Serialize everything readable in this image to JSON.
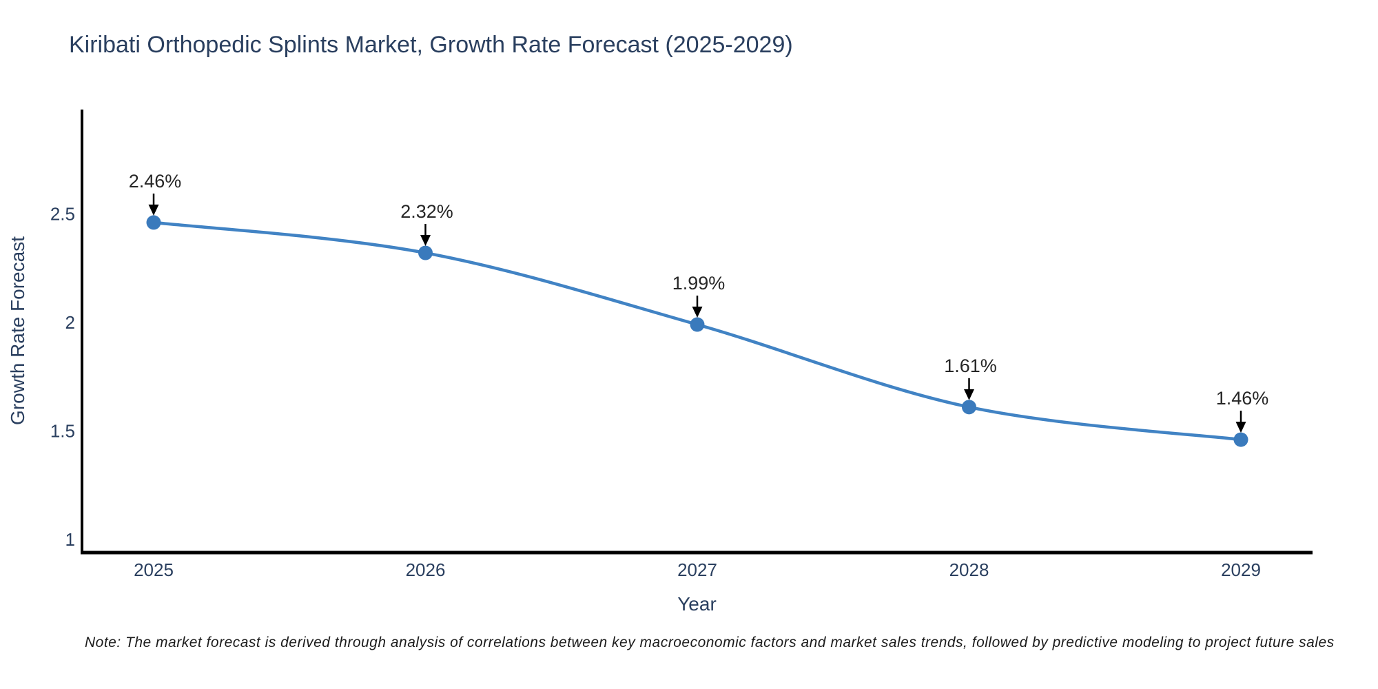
{
  "title": "Kiribati Orthopedic Splints Market, Growth Rate Forecast (2025-2029)",
  "note": "Note: The market forecast is derived through analysis of correlations between key macroeconomic factors and market sales trends, followed by predictive modeling to project future sales",
  "chart_data": {
    "type": "line",
    "title": "Kiribati Orthopedic Splints Market, Growth Rate Forecast (2025-2029)",
    "xlabel": "Year",
    "ylabel": "Growth Rate Forecast",
    "categories": [
      "2025",
      "2026",
      "2027",
      "2028",
      "2029"
    ],
    "series": [
      {
        "name": "Growth Rate Forecast",
        "values": [
          2.46,
          2.32,
          1.99,
          1.61,
          1.46
        ],
        "labels": [
          "2.46%",
          "2.32%",
          "1.99%",
          "1.61%",
          "1.46%"
        ]
      }
    ],
    "yticks": [
      1,
      1.5,
      2,
      2.5
    ],
    "ylim": [
      0.94,
      2.98
    ],
    "line_shape": "spline",
    "grid": false,
    "legend": false,
    "colors": {
      "line": "#4183c4",
      "marker": "#3a7abc",
      "axis": "#000000",
      "arrow": "#000000",
      "title_text": "#2a3f5f",
      "tick_text": "#2a3f5f",
      "annotation_text": "#262626"
    }
  }
}
